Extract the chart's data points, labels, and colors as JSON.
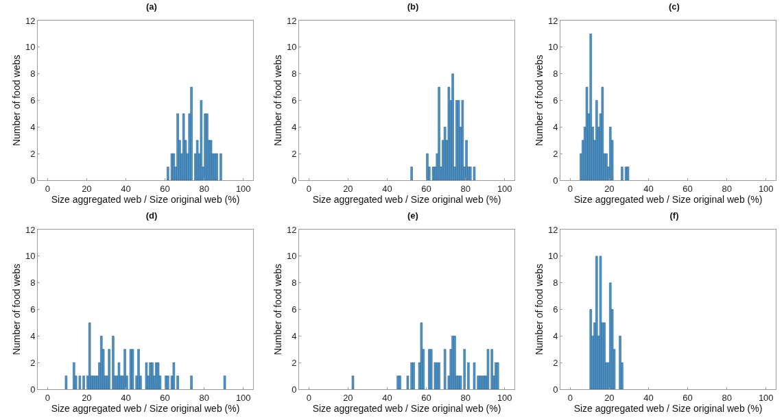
{
  "chart_data": [
    {
      "type": "histogram",
      "title": "(a)",
      "xlabel": "Size aggregated web / Size original web (%)",
      "ylabel": "Number of food webs",
      "color": "#4d93c8",
      "xlim": [
        -5,
        105
      ],
      "ylim": [
        0,
        12
      ],
      "xticks": [
        0,
        20,
        40,
        60,
        80,
        100
      ],
      "yticks": [
        0,
        2,
        4,
        6,
        8,
        10,
        12
      ],
      "bins": [
        61,
        62,
        63,
        64,
        65,
        66,
        67,
        68,
        69,
        70,
        71,
        72,
        73,
        74,
        75,
        76,
        77,
        78,
        79,
        80,
        81,
        82,
        83,
        84,
        85,
        86,
        87,
        88,
        89
      ],
      "values": [
        1,
        0,
        2,
        2,
        1,
        5,
        3,
        2,
        5,
        3,
        2,
        5,
        7,
        0,
        2,
        3,
        2,
        6,
        1,
        5,
        5,
        3,
        3,
        2,
        2,
        2,
        0,
        2
      ]
    },
    {
      "type": "histogram",
      "title": "(b)",
      "xlabel": "Size aggregated web / Size original web (%)",
      "ylabel": "Number of food webs",
      "color": "#4d93c8",
      "xlim": [
        -5,
        105
      ],
      "ylim": [
        0,
        12
      ],
      "xticks": [
        0,
        20,
        40,
        60,
        80,
        100
      ],
      "yticks": [
        0,
        2,
        4,
        6,
        8,
        10,
        12
      ],
      "bins": [
        52,
        53,
        54,
        55,
        56,
        57,
        58,
        59,
        60,
        61,
        62,
        63,
        64,
        65,
        66,
        67,
        68,
        69,
        70,
        71,
        72,
        73,
        74,
        75,
        76,
        77,
        78,
        79,
        80,
        81,
        82,
        83,
        84,
        85
      ],
      "values": [
        1,
        0,
        0,
        0,
        0,
        0,
        0,
        0,
        2,
        1,
        0,
        1,
        1,
        2,
        7,
        1,
        3,
        4,
        3,
        7,
        6,
        8,
        1,
        6,
        6,
        4,
        6,
        1,
        3,
        1,
        1,
        0,
        1
      ]
    },
    {
      "type": "histogram",
      "title": "(c)",
      "xlabel": "Size aggregated web / Size original web (%)",
      "ylabel": "Number of food webs",
      "color": "#4d93c8",
      "xlim": [
        -5,
        105
      ],
      "ylim": [
        0,
        12
      ],
      "xticks": [
        0,
        20,
        40,
        60,
        80,
        100
      ],
      "yticks": [
        0,
        2,
        4,
        6,
        8,
        10,
        12
      ],
      "bins": [
        5,
        6,
        7,
        8,
        9,
        10,
        11,
        12,
        13,
        14,
        15,
        16,
        17,
        18,
        19,
        20,
        21,
        22,
        23,
        24,
        25,
        26,
        27,
        28,
        29,
        30
      ],
      "values": [
        2,
        3,
        4,
        7,
        5,
        11,
        4,
        3,
        6,
        4,
        5,
        7,
        2,
        2,
        1,
        4,
        3,
        0,
        0,
        0,
        0,
        1,
        0,
        1,
        1
      ]
    },
    {
      "type": "histogram",
      "title": "(d)",
      "xlabel": "Size aggregated web / Size original web (%)",
      "ylabel": "Number of food webs",
      "color": "#4d93c8",
      "xlim": [
        -5,
        105
      ],
      "ylim": [
        0,
        12
      ],
      "xticks": [
        0,
        20,
        40,
        60,
        80,
        100
      ],
      "yticks": [
        0,
        2,
        4,
        6,
        8,
        10,
        12
      ],
      "bins": [
        9,
        10,
        11,
        12,
        13,
        14,
        15,
        16,
        17,
        18,
        19,
        20,
        21,
        22,
        23,
        24,
        25,
        26,
        27,
        28,
        29,
        30,
        31,
        32,
        33,
        34,
        35,
        36,
        37,
        38,
        39,
        40,
        41,
        42,
        43,
        44,
        45,
        46,
        47,
        48,
        49,
        50,
        51,
        52,
        53,
        54,
        55,
        56,
        57,
        58,
        59,
        60,
        61,
        62,
        63,
        64,
        65,
        66,
        67,
        68,
        69,
        70,
        71,
        72,
        73,
        74,
        75,
        76,
        77,
        78,
        79,
        80,
        81,
        82,
        83,
        84,
        85,
        86,
        87,
        88,
        89,
        90,
        91
      ],
      "values": [
        1,
        0,
        0,
        0,
        2,
        1,
        0,
        1,
        0,
        1,
        0,
        1,
        5,
        1,
        1,
        1,
        1,
        2,
        4,
        3,
        1,
        1,
        3,
        0,
        4,
        1,
        1,
        2,
        1,
        1,
        3,
        1,
        0,
        3,
        3,
        0,
        1,
        3,
        1,
        0,
        0,
        2,
        1,
        2,
        2,
        1,
        2,
        2,
        1,
        0,
        0,
        1,
        1,
        0,
        1,
        2,
        0,
        1,
        0,
        0,
        0,
        0,
        0,
        0,
        1,
        0,
        0,
        0,
        0,
        0,
        0,
        0,
        0,
        0,
        0,
        0,
        0,
        0,
        0,
        0,
        0,
        1
      ]
    },
    {
      "type": "histogram",
      "title": "(e)",
      "xlabel": "Size aggregated web / Size original web (%)",
      "ylabel": "Number of food webs",
      "color": "#4d93c8",
      "xlim": [
        -5,
        105
      ],
      "ylim": [
        0,
        12
      ],
      "xticks": [
        0,
        20,
        40,
        60,
        80,
        100
      ],
      "yticks": [
        0,
        2,
        4,
        6,
        8,
        10,
        12
      ],
      "bins": [
        22,
        23,
        24,
        25,
        26,
        27,
        28,
        29,
        30,
        31,
        32,
        33,
        34,
        35,
        36,
        37,
        38,
        39,
        40,
        41,
        42,
        43,
        44,
        45,
        46,
        47,
        48,
        49,
        50,
        51,
        52,
        53,
        54,
        55,
        56,
        57,
        58,
        59,
        60,
        61,
        62,
        63,
        64,
        65,
        66,
        67,
        68,
        69,
        70,
        71,
        72,
        73,
        74,
        75,
        76,
        77,
        78,
        79,
        80,
        81,
        82,
        83,
        84,
        85,
        86,
        87,
        88,
        89,
        90,
        91,
        92,
        93,
        94,
        95,
        96,
        97
      ],
      "values": [
        1,
        0,
        0,
        0,
        0,
        0,
        0,
        0,
        0,
        0,
        0,
        0,
        0,
        0,
        0,
        0,
        0,
        0,
        0,
        0,
        0,
        0,
        0,
        1,
        1,
        0,
        0,
        0,
        1,
        0,
        2,
        2,
        0,
        0,
        2,
        5,
        3,
        0,
        0,
        3,
        3,
        0,
        2,
        2,
        2,
        0,
        0,
        3,
        0,
        1,
        3,
        4,
        4,
        1,
        1,
        1,
        0,
        3,
        0,
        2,
        0,
        0,
        2,
        0,
        1,
        1,
        1,
        1,
        1,
        3,
        0,
        3,
        1,
        2,
        2
      ]
    },
    {
      "type": "histogram",
      "title": "(f)",
      "xlabel": "Size aggregated web / Size original web (%)",
      "ylabel": "Number of food webs",
      "color": "#4d93c8",
      "xlim": [
        -5,
        105
      ],
      "ylim": [
        0,
        12
      ],
      "xticks": [
        0,
        20,
        40,
        60,
        80,
        100
      ],
      "yticks": [
        0,
        2,
        4,
        6,
        8,
        10,
        12
      ],
      "bins": [
        10,
        11,
        12,
        13,
        14,
        15,
        16,
        17,
        18,
        19,
        20,
        21,
        22,
        23,
        24,
        25,
        26,
        27
      ],
      "values": [
        6,
        4,
        5,
        10,
        4,
        10,
        5,
        5,
        2,
        2,
        8,
        6,
        3,
        0,
        0,
        4,
        2
      ]
    }
  ]
}
